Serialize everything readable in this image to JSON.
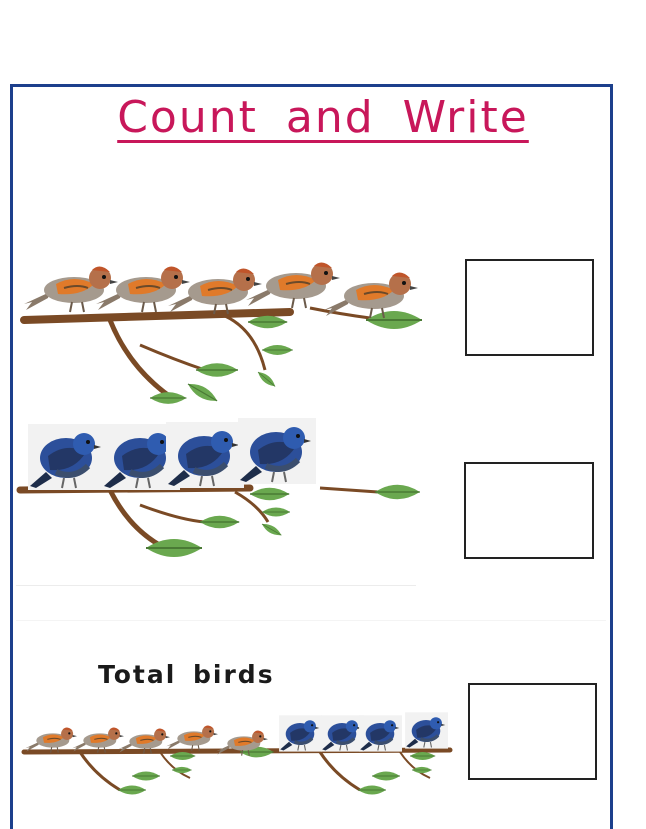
{
  "worksheet": {
    "title": "Count and Write",
    "total_label": "Total birds"
  },
  "rows": [
    {
      "bird_type": "orange-sparrow",
      "bird_count": 5
    },
    {
      "bird_type": "blue-bird",
      "bird_count": 4
    },
    {
      "bird_type": "mixed",
      "orange_count": 5,
      "blue_count": 4
    }
  ],
  "colors": {
    "title": "#c8175a",
    "frame": "#1c3f8c",
    "branch": "#7a4a25",
    "leaf": "#6aa84f"
  }
}
